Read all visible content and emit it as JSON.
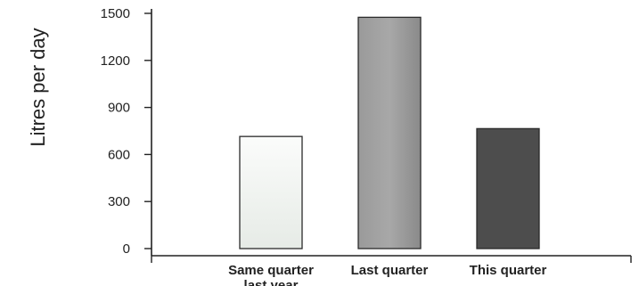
{
  "chart_data": {
    "type": "bar",
    "categories": [
      "Same quarter last year",
      "Last quarter",
      "This quarter"
    ],
    "values": [
      715,
      1475,
      765
    ],
    "ylabel": "Litres per day",
    "xlabel": "",
    "ylim": [
      0,
      1500
    ],
    "yticks": [
      "0",
      "300",
      "600",
      "900",
      "1200",
      "1500"
    ],
    "bar_colors": [
      "#f4f6f4",
      "#8f8f8f",
      "#4d4d4d"
    ],
    "grid": false,
    "legend": "none"
  }
}
